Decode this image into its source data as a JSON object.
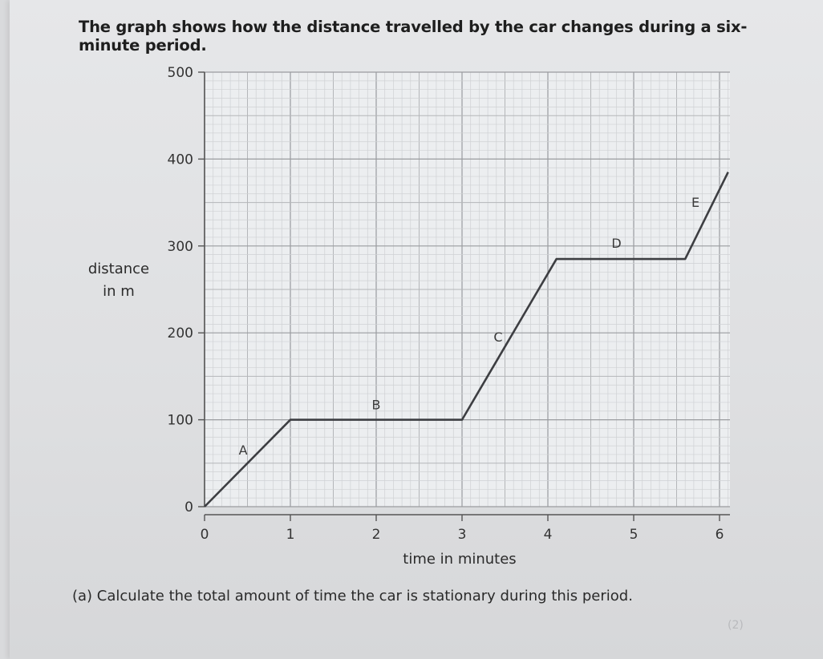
{
  "intro_text": "The graph shows how the distance travelled by the car changes during a six-minute period.",
  "question_text": "(a) Calculate the total amount of time the car is stationary during this period.",
  "marks_text": "(2)",
  "chart_data": {
    "type": "line",
    "title": "",
    "xlabel": "time in minutes",
    "ylabel_lines": [
      "distance",
      "in m"
    ],
    "xlim": [
      0,
      6.1
    ],
    "ylim": [
      0,
      500
    ],
    "xticks": [
      0,
      1,
      2,
      3,
      4,
      5,
      6
    ],
    "yticks": [
      0,
      100,
      200,
      300,
      400,
      500
    ],
    "grid": true,
    "series": [
      {
        "name": "",
        "x": [
          0,
          1,
          3,
          4.1,
          5.6,
          6.1
        ],
        "y": [
          0,
          100,
          100,
          285,
          285,
          385
        ]
      }
    ],
    "segment_labels": [
      {
        "text": "A",
        "x": 0.45,
        "y": 60
      },
      {
        "text": "B",
        "x": 2.0,
        "y": 112
      },
      {
        "text": "C",
        "x": 3.42,
        "y": 190
      },
      {
        "text": "D",
        "x": 4.8,
        "y": 298
      },
      {
        "text": "E",
        "x": 5.72,
        "y": 345
      }
    ]
  }
}
